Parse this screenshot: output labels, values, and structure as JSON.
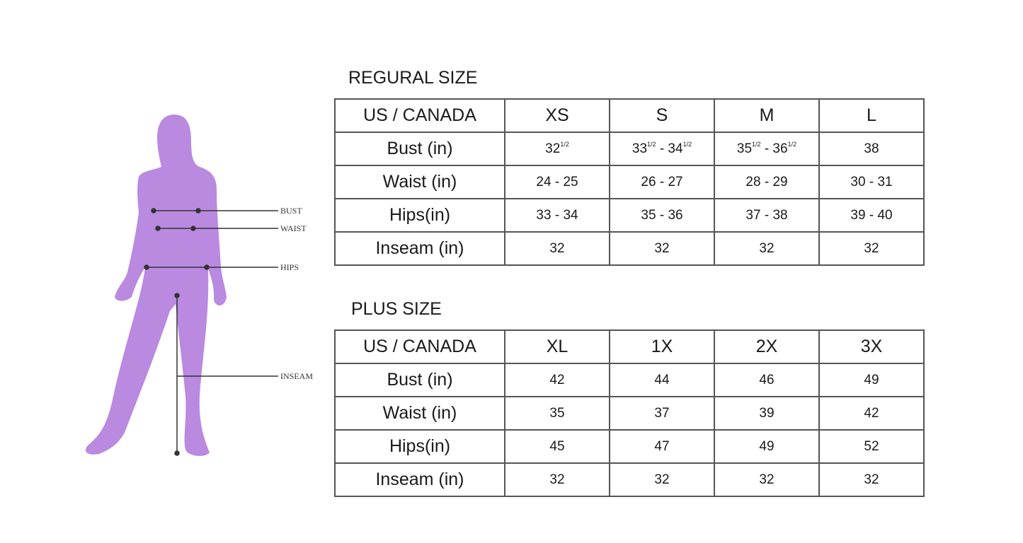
{
  "figure": {
    "silhouette_color": "#b98ae0",
    "labels": {
      "bust": "BUST",
      "waist": "WAIST",
      "hips": "HIPS",
      "inseam": "INSEAM"
    }
  },
  "regular": {
    "title": "REGURAL SIZE",
    "header": [
      "US / CANADA",
      "XS",
      "S",
      "M",
      "L"
    ],
    "rows": [
      {
        "label": "Bust (in)",
        "cells": [
          [
            {
              "t": "32"
            },
            {
              "s": "1/2"
            }
          ],
          [
            {
              "t": "33"
            },
            {
              "s": "1/2"
            },
            {
              "t": " - 34"
            },
            {
              "s": "1/2"
            }
          ],
          [
            {
              "t": "35"
            },
            {
              "s": "1/2"
            },
            {
              "t": " - 36"
            },
            {
              "s": "1/2"
            }
          ],
          [
            {
              "t": "38"
            }
          ]
        ]
      },
      {
        "label": "Waist (in)",
        "cells": [
          [
            {
              "t": "24 - 25"
            }
          ],
          [
            {
              "t": "26 - 27"
            }
          ],
          [
            {
              "t": "28 - 29"
            }
          ],
          [
            {
              "t": "30 - 31"
            }
          ]
        ]
      },
      {
        "label": "Hips(in)",
        "cells": [
          [
            {
              "t": "33 - 34"
            }
          ],
          [
            {
              "t": "35 - 36"
            }
          ],
          [
            {
              "t": "37 - 38"
            }
          ],
          [
            {
              "t": "39 - 40"
            }
          ]
        ]
      },
      {
        "label": "Inseam (in)",
        "cells": [
          [
            {
              "t": "32"
            }
          ],
          [
            {
              "t": "32"
            }
          ],
          [
            {
              "t": "32"
            }
          ],
          [
            {
              "t": "32"
            }
          ]
        ]
      }
    ]
  },
  "plus": {
    "title": "PLUS SIZE",
    "header": [
      "US / CANADA",
      "XL",
      "1X",
      "2X",
      "3X"
    ],
    "rows": [
      {
        "label": "Bust (in)",
        "cells": [
          [
            {
              "t": "42"
            }
          ],
          [
            {
              "t": "44"
            }
          ],
          [
            {
              "t": "46"
            }
          ],
          [
            {
              "t": "49"
            }
          ]
        ]
      },
      {
        "label": "Waist (in)",
        "cells": [
          [
            {
              "t": "35"
            }
          ],
          [
            {
              "t": "37"
            }
          ],
          [
            {
              "t": "39"
            }
          ],
          [
            {
              "t": "42"
            }
          ]
        ]
      },
      {
        "label": "Hips(in)",
        "cells": [
          [
            {
              "t": "45"
            }
          ],
          [
            {
              "t": "47"
            }
          ],
          [
            {
              "t": "49"
            }
          ],
          [
            {
              "t": "52"
            }
          ]
        ]
      },
      {
        "label": "Inseam (in)",
        "cells": [
          [
            {
              "t": "32"
            }
          ],
          [
            {
              "t": "32"
            }
          ],
          [
            {
              "t": "32"
            }
          ],
          [
            {
              "t": "32"
            }
          ]
        ]
      }
    ]
  }
}
